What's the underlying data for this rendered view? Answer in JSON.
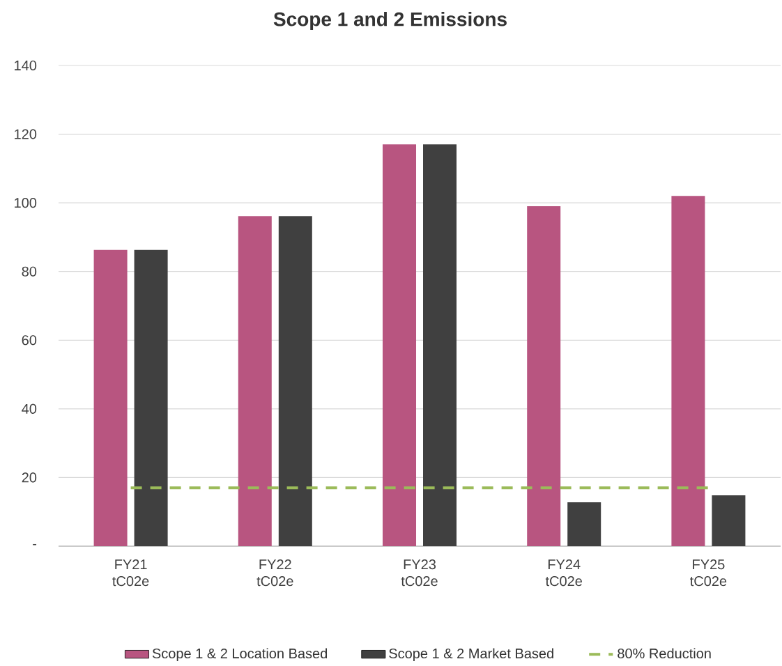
{
  "chart_data": {
    "type": "bar",
    "title": "Scope 1 and 2 Emissions",
    "categories": [
      "FY21 tC02e",
      "FY22 tC02e",
      "FY23 tC02e",
      "FY24 tC02e",
      "FY25 tC02e"
    ],
    "series": [
      {
        "name": "Scope 1 & 2 Location Based",
        "color": "#b85580",
        "values": [
          86.3,
          96.1,
          117,
          99,
          102
        ]
      },
      {
        "name": "Scope 1 & 2 Market Based",
        "color": "#404040",
        "values": [
          86.3,
          96.1,
          117,
          12.8,
          14.8
        ]
      },
      {
        "name": "80% Reduction",
        "type": "line",
        "line_style": "dashed",
        "color": "#9bbb59",
        "values": [
          17,
          17,
          17,
          17,
          17
        ]
      }
    ],
    "ylim": [
      0,
      140
    ],
    "yticks": [
      {
        "value": 0,
        "label": "-"
      },
      20,
      40,
      60,
      80,
      100,
      120,
      140
    ],
    "grid": "y",
    "legend": "bottom"
  }
}
